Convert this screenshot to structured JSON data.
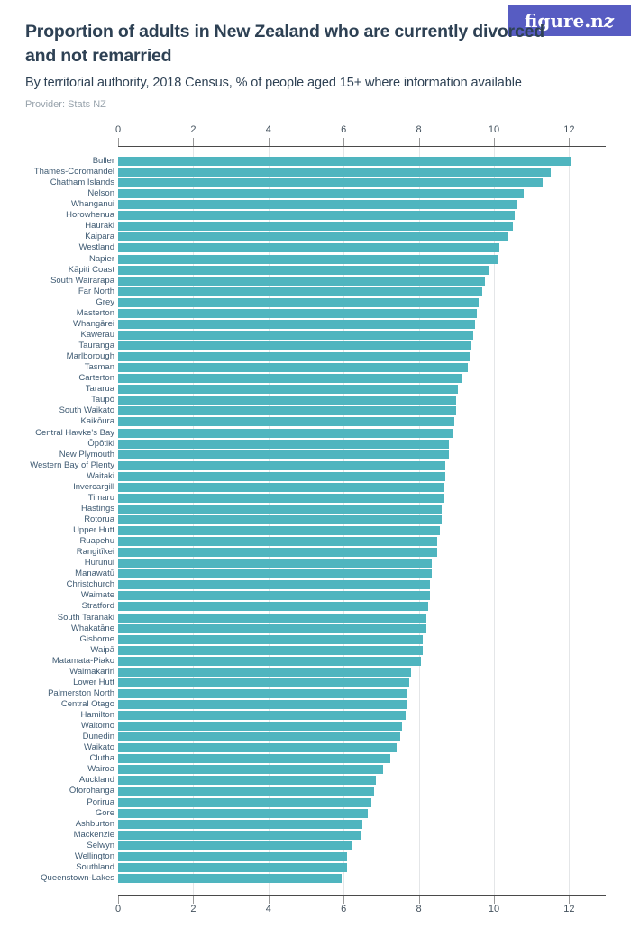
{
  "header": {
    "title": "Proportion of adults in New Zealand who are currently divorced and not remarried",
    "title_line1": "Proportion of adults in New Zealand who are currently divorced",
    "title_line2": "and not remarried",
    "subtitle": "By territorial authority, 2018 Census, % of people aged 15+ where information available",
    "provider": "Provider: Stats NZ",
    "logo_text_main": "figure.n",
    "logo_text_z": "z"
  },
  "colors": {
    "bar": "#4fb5bf",
    "logo_background": "#575cc2",
    "title_text": "#2e4154",
    "category_text": "#3e5a72",
    "axis_line": "#4a4a4a",
    "gridline": "#e4e6e8"
  },
  "chart_data": {
    "type": "bar",
    "orientation": "horizontal",
    "title": "Proportion of adults in New Zealand who are currently divorced and not remarried",
    "subtitle": "By territorial authority, 2018 Census, % of people aged 15+ where information available",
    "xlabel": "",
    "ylabel": "",
    "x_ticks": [
      0,
      2,
      4,
      6,
      8,
      10,
      12
    ],
    "xlim": [
      0,
      13
    ],
    "grid": true,
    "legend": false,
    "categories": [
      "Buller",
      "Thames-Coromandel",
      "Chatham Islands",
      "Nelson",
      "Whanganui",
      "Horowhenua",
      "Hauraki",
      "Kaipara",
      "Westland",
      "Napier",
      "Kāpiti Coast",
      "South Wairarapa",
      "Far North",
      "Grey",
      "Masterton",
      "Whangārei",
      "Kawerau",
      "Tauranga",
      "Marlborough",
      "Tasman",
      "Carterton",
      "Tararua",
      "Taupō",
      "South Waikato",
      "Kaikōura",
      "Central Hawke's Bay",
      "Ōpōtiki",
      "New Plymouth",
      "Western Bay of Plenty",
      "Waitaki",
      "Invercargill",
      "Timaru",
      "Hastings",
      "Rotorua",
      "Upper Hutt",
      "Ruapehu",
      "Rangitīkei",
      "Hurunui",
      "Manawatū",
      "Christchurch",
      "Waimate",
      "Stratford",
      "South Taranaki",
      "Whakatāne",
      "Gisborne",
      "Waipā",
      "Matamata-Piako",
      "Waimakariri",
      "Lower Hutt",
      "Palmerston North",
      "Central Otago",
      "Hamilton",
      "Waitomo",
      "Dunedin",
      "Waikato",
      "Clutha",
      "Wairoa",
      "Auckland",
      "Ōtorohanga",
      "Porirua",
      "Gore",
      "Ashburton",
      "Mackenzie",
      "Selwyn",
      "Wellington",
      "Southland",
      "Queenstown-Lakes"
    ],
    "values": [
      12.05,
      11.5,
      11.3,
      10.8,
      10.6,
      10.55,
      10.5,
      10.35,
      10.15,
      10.1,
      9.85,
      9.75,
      9.7,
      9.6,
      9.55,
      9.5,
      9.45,
      9.4,
      9.35,
      9.3,
      9.15,
      9.05,
      9.0,
      9.0,
      8.95,
      8.9,
      8.8,
      8.8,
      8.7,
      8.7,
      8.65,
      8.65,
      8.6,
      8.6,
      8.55,
      8.5,
      8.5,
      8.35,
      8.35,
      8.3,
      8.3,
      8.25,
      8.2,
      8.2,
      8.1,
      8.1,
      8.05,
      7.8,
      7.75,
      7.7,
      7.7,
      7.65,
      7.55,
      7.5,
      7.4,
      7.25,
      7.05,
      6.85,
      6.8,
      6.75,
      6.65,
      6.5,
      6.45,
      6.2,
      6.1,
      6.1,
      5.95
    ]
  }
}
